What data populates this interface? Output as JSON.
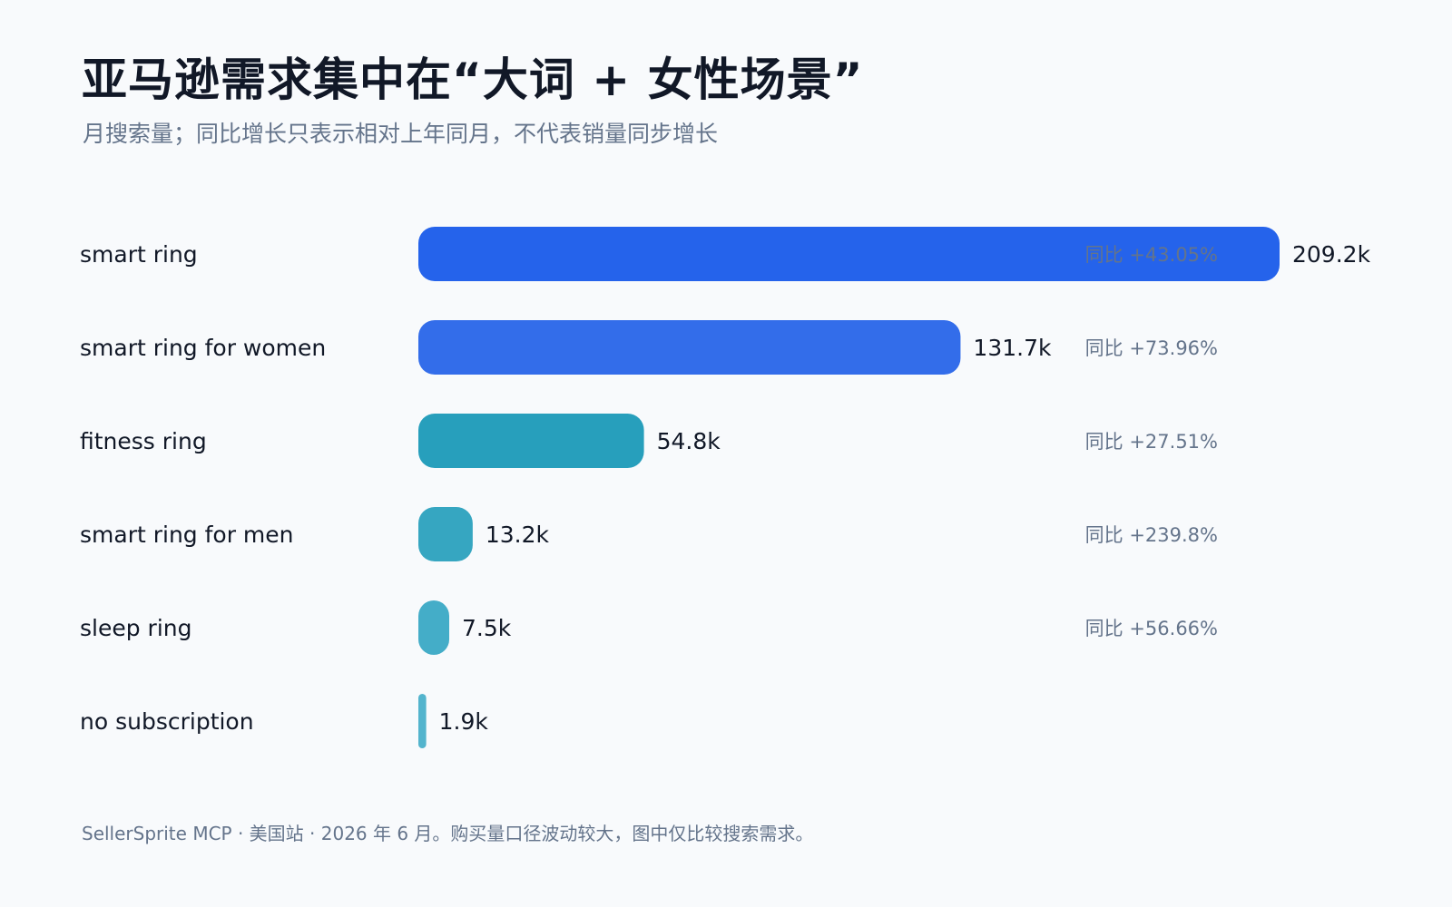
{
  "title": "亚马逊需求集中在“大词 + 女性场景”",
  "subtitle": "月搜索量；同比增长只表示相对上年同月，不代表销量同步增长",
  "footer": "SellerSprite MCP · 美国站 · 2026 年 6 月。购买量口径波动较大，图中仅比较搜索需求。",
  "colors": {
    "background": "#f8fafc",
    "title": "#111827",
    "muted": "#64748b",
    "bars": [
      "#2563eb",
      "#336dea",
      "#279fbc",
      "#36a6c1",
      "#44adc8",
      "#53b4cd"
    ]
  },
  "chart_data": {
    "type": "bar",
    "orientation": "horizontal",
    "title": "亚马逊需求集中在“大词 + 女性场景”",
    "subtitle": "月搜索量；同比增长只表示相对上年同月，不代表销量同步增长",
    "categories": [
      "smart ring",
      "smart ring for women",
      "fitness ring",
      "smart ring for men",
      "sleep ring",
      "no subscription"
    ],
    "values": [
      209.2,
      131.7,
      54.8,
      13.2,
      7.5,
      1.9
    ],
    "value_labels": [
      "209.2k",
      "131.7k",
      "54.8k",
      "13.2k",
      "7.5k",
      "1.9k"
    ],
    "yoy_labels": [
      "同比 +43.05%",
      "同比 +73.96%",
      "同比 +27.51%",
      "同比 +239.8%",
      "同比 +56.66%",
      ""
    ],
    "unit": "k",
    "xlim": [
      0,
      209.2
    ],
    "grid": false,
    "legend": "none"
  }
}
